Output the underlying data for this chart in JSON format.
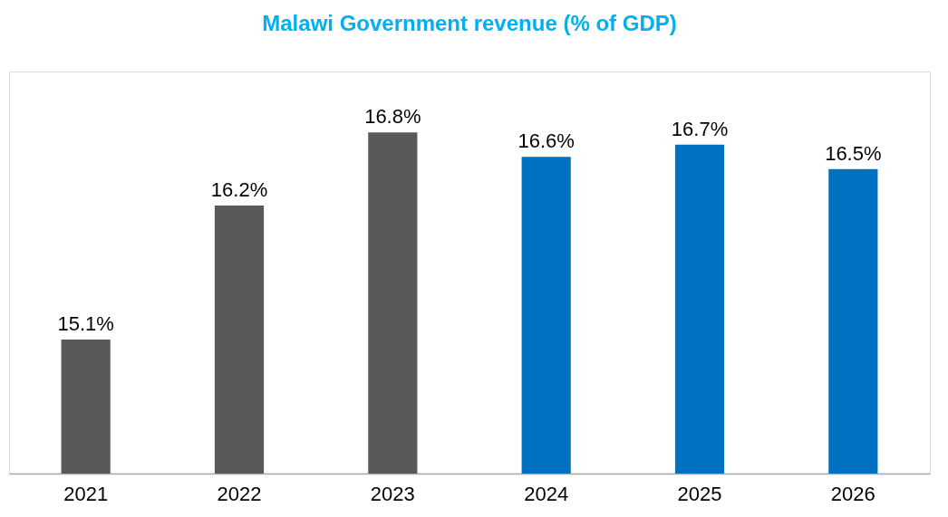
{
  "chart_data": {
    "type": "bar",
    "title": "Malawi Government revenue (% of GDP)",
    "categories": [
      "2021",
      "2022",
      "2023",
      "2024",
      "2025",
      "2026"
    ],
    "values": [
      15.1,
      16.2,
      16.8,
      16.6,
      16.7,
      16.5
    ],
    "colors": [
      "#595959",
      "#595959",
      "#595959",
      "#0070c0",
      "#0070c0",
      "#0070c0"
    ],
    "value_labels": [
      "15.1%",
      "16.2%",
      "16.8%",
      "16.6%",
      "16.7%",
      "16.5%"
    ],
    "ylim": [
      14,
      17.3
    ],
    "tick_labels": "x",
    "grid": false
  }
}
